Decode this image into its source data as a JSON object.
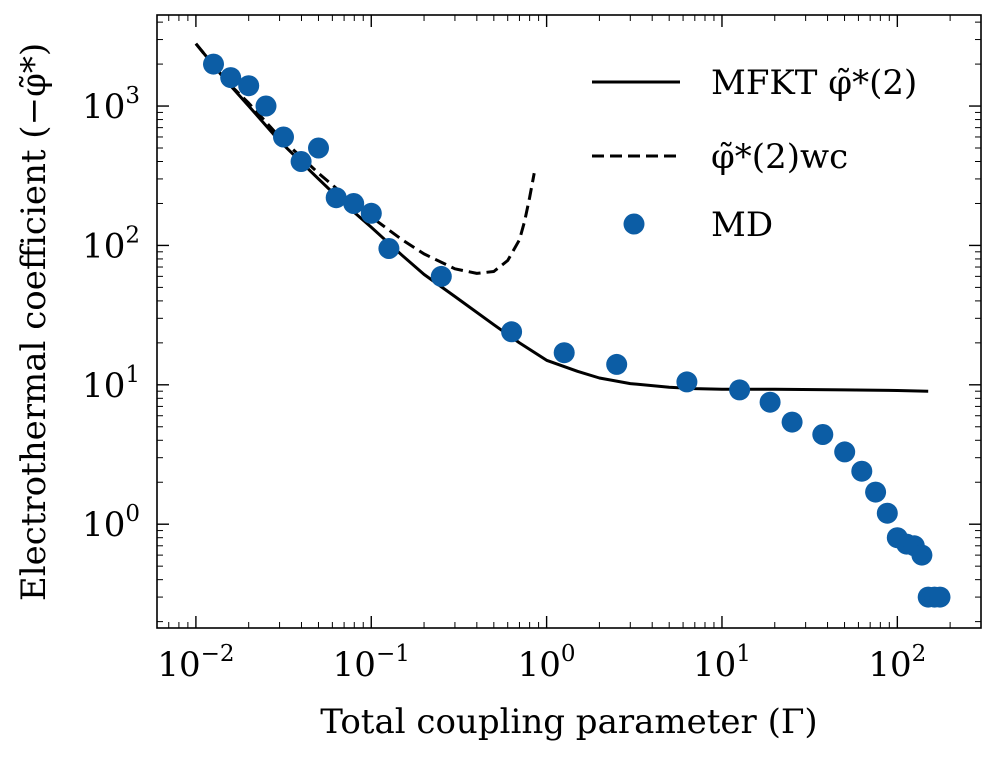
{
  "chart_data": {
    "type": "scatter",
    "scale": {
      "x": "log",
      "y": "log"
    },
    "xlim": [
      0.006,
      300
    ],
    "ylim": [
      0.18,
      4500
    ],
    "xlabel": "Total coupling parameter (Γ)",
    "ylabel": "Electrothermal coefficient (−φ̃*)",
    "x_ticks": [
      {
        "value": 0.01,
        "base": "10",
        "exp": "−2"
      },
      {
        "value": 0.1,
        "base": "10",
        "exp": "−1"
      },
      {
        "value": 1,
        "base": "10",
        "exp": "0"
      },
      {
        "value": 10,
        "base": "10",
        "exp": "1"
      },
      {
        "value": 100,
        "base": "10",
        "exp": "2"
      }
    ],
    "y_ticks": [
      {
        "value": 1,
        "base": "10",
        "exp": "0"
      },
      {
        "value": 10,
        "base": "10",
        "exp": "1"
      },
      {
        "value": 100,
        "base": "10",
        "exp": "2"
      },
      {
        "value": 1000,
        "base": "10",
        "exp": "3"
      }
    ],
    "legend_position": "top-right",
    "series": [
      {
        "name": "MFKT φ̃*(2)",
        "kind": "line",
        "dash": "solid",
        "color": "#000000",
        "x": [
          0.01,
          0.015,
          0.02,
          0.03,
          0.05,
          0.07,
          0.1,
          0.15,
          0.2,
          0.3,
          0.5,
          0.7,
          1.0,
          1.5,
          2.0,
          3.0,
          5.0,
          7.0,
          10,
          20,
          50,
          100,
          150
        ],
        "y": [
          2800,
          1500,
          1000,
          560,
          300,
          200,
          135,
          85,
          62,
          43,
          27,
          20,
          15,
          12.5,
          11.2,
          10.2,
          9.6,
          9.4,
          9.3,
          9.3,
          9.2,
          9.1,
          9.0
        ]
      },
      {
        "name": "φ̃*(2)wc",
        "kind": "line",
        "dash": "dashed",
        "color": "#000000",
        "x": [
          0.01,
          0.015,
          0.02,
          0.03,
          0.05,
          0.07,
          0.1,
          0.15,
          0.2,
          0.3,
          0.4,
          0.5,
          0.6,
          0.7,
          0.75,
          0.8,
          0.85
        ],
        "y": [
          2800,
          1500,
          1050,
          600,
          330,
          230,
          160,
          110,
          87,
          68,
          63,
          65,
          78,
          110,
          150,
          220,
          330
        ]
      },
      {
        "name": "MD",
        "kind": "scatter",
        "color": "#0c5da5",
        "x": [
          0.0126,
          0.0158,
          0.02,
          0.0251,
          0.0316,
          0.0398,
          0.05,
          0.0631,
          0.0794,
          0.1,
          0.126,
          0.251,
          0.631,
          1.26,
          2.51,
          6.31,
          12.6,
          18.8,
          25.1,
          37.6,
          50.1,
          62.7,
          75.2,
          87.7,
          100,
          113,
          125,
          138,
          150,
          163,
          175
        ],
        "y": [
          2000,
          1600,
          1400,
          1000,
          600,
          400,
          500,
          220,
          200,
          170,
          95,
          60,
          24,
          17,
          14,
          10.5,
          9.2,
          7.5,
          5.4,
          4.4,
          3.3,
          2.4,
          1.7,
          1.2,
          0.8,
          0.72,
          0.7,
          0.6,
          0.3,
          0.3,
          0.3
        ]
      }
    ]
  }
}
